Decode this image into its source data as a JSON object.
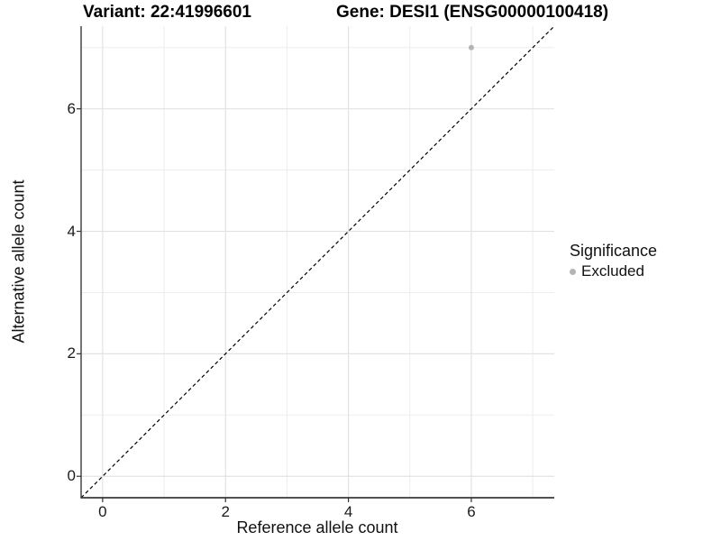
{
  "titles": {
    "variant": "Variant: 22:41996601",
    "gene": "Gene: DESI1 (ENSG00000100418)"
  },
  "chart_data": {
    "type": "scatter",
    "xlabel": "Reference allele count",
    "ylabel": "Alternative allele count",
    "xlim": [
      -0.35,
      7.35
    ],
    "ylim": [
      -0.35,
      7.35
    ],
    "x_breaks": [
      0,
      2,
      4,
      6
    ],
    "x_minor_breaks": [
      1,
      3,
      5,
      7
    ],
    "y_breaks": [
      0,
      2,
      4,
      6
    ],
    "y_minor_breaks": [
      1,
      3,
      5,
      7
    ],
    "grid": true,
    "identity_line": {
      "type": "dashed",
      "x1": -0.35,
      "y1": -0.35,
      "x2": 7.35,
      "y2": 7.35,
      "color": "#000000"
    },
    "series": [
      {
        "name": "Excluded",
        "color": "#b4b4b4",
        "points": [
          {
            "x": 6,
            "y": 7
          }
        ]
      }
    ],
    "legend": {
      "title": "Significance",
      "position": "right",
      "items": [
        {
          "label": "Excluded",
          "color": "#b4b4b4"
        }
      ]
    },
    "colors": {
      "major_grid": "#e2e2e2",
      "minor_grid": "#ededed",
      "axis_line": "#3a3a3a",
      "tick_mark": "#333333"
    }
  }
}
